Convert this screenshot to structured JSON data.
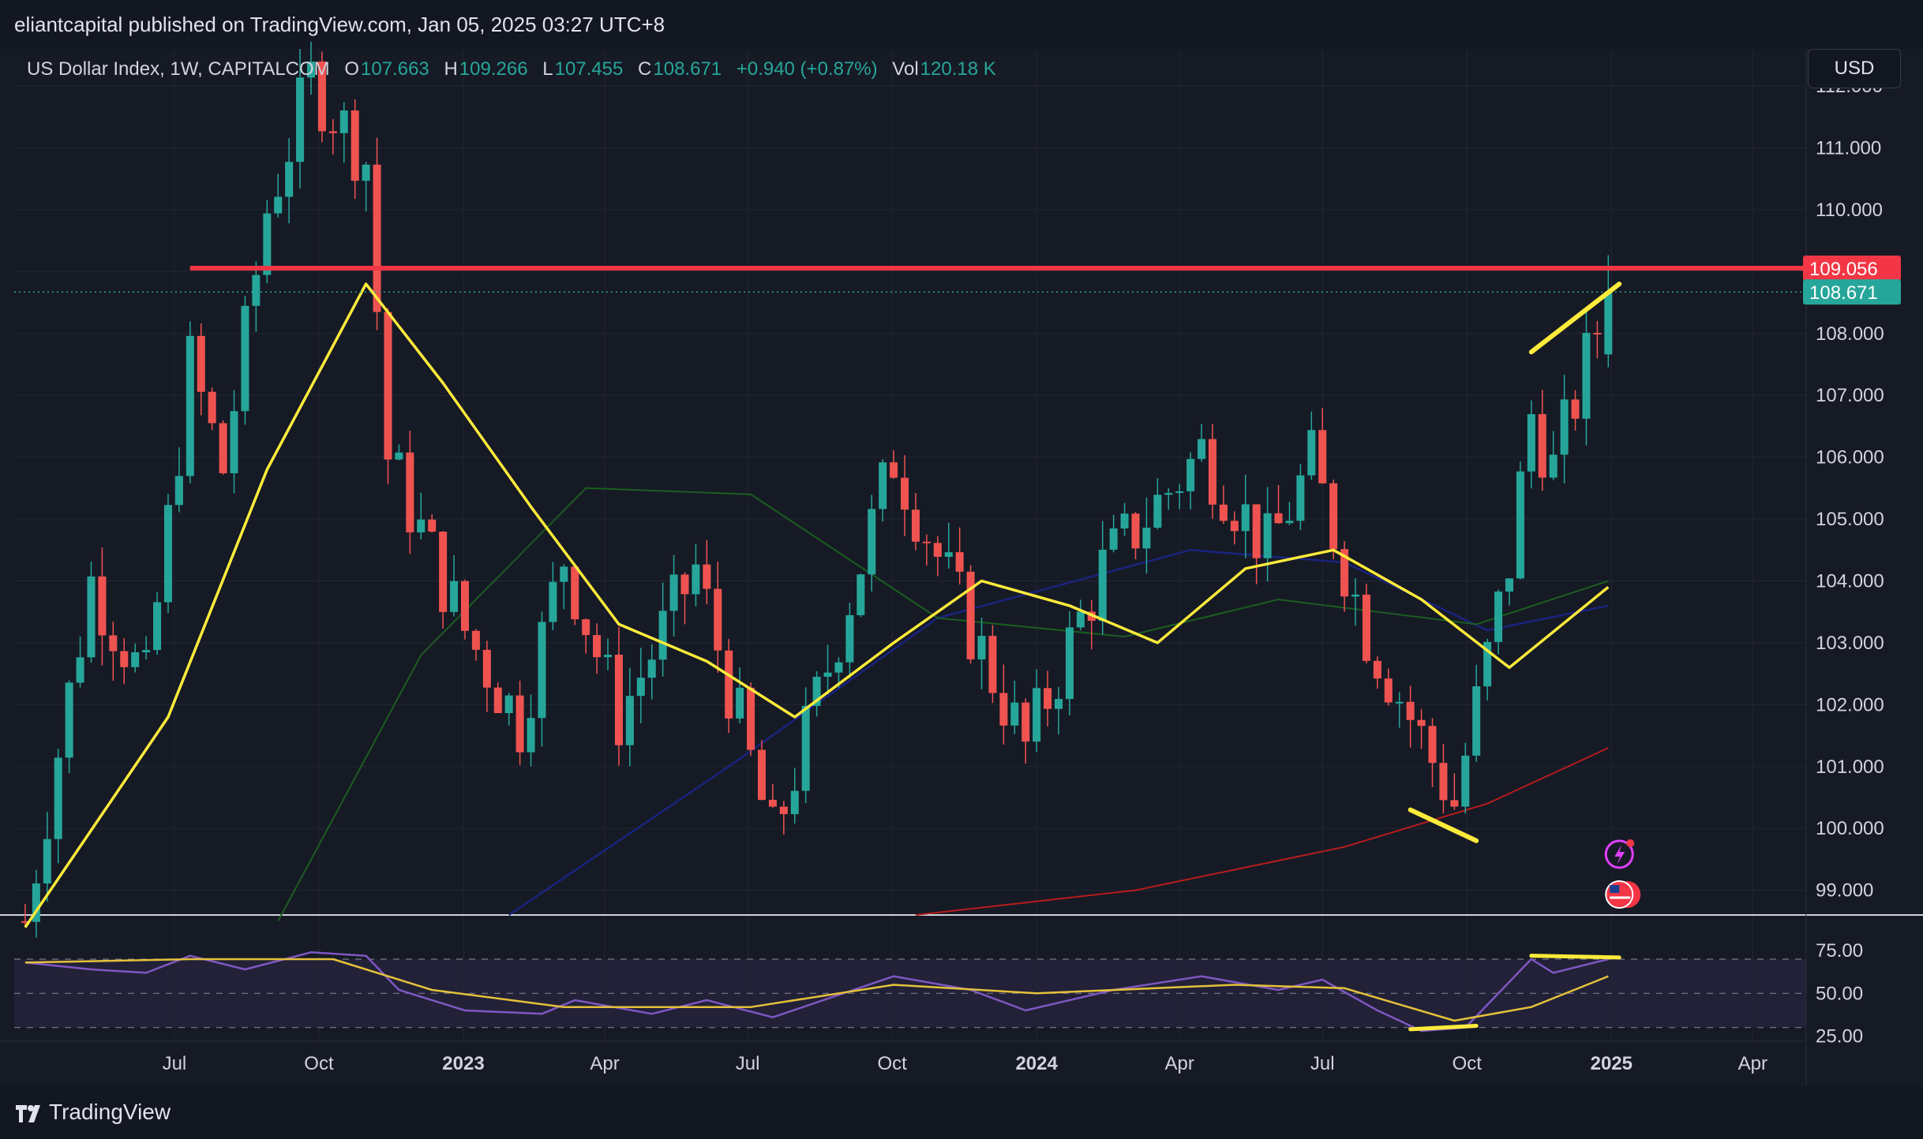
{
  "header": {
    "published": "eliantcapital published on TradingView.com, Jan 05, 2025 03:27 UTC+8",
    "symbol": "US Dollar Index, 1W, CAPITALCOM",
    "open_label": "O",
    "open": "107.663",
    "high_label": "H",
    "high": "109.266",
    "low_label": "L",
    "low": "107.455",
    "close_label": "C",
    "close": "108.671",
    "change": "+0.940 (+0.87%)",
    "vol_label": "Vol",
    "vol": "120.18 K",
    "currency": "USD"
  },
  "footer": {
    "brand": "TradingView"
  },
  "colors": {
    "up": "#26a69a",
    "down": "#ef5350",
    "resistance": "#f23645",
    "ma_yellow": "#ffeb3b",
    "rsi": "#7e57c2",
    "bg": "#161a25"
  },
  "icons": [
    "flash-event-icon",
    "us-flag-event-icon"
  ],
  "chart_data": {
    "type": "candlestick",
    "title": "US Dollar Index, 1W, CAPITALCOM",
    "interval": "1W",
    "y_ticks": [
      "112.000",
      "111.000",
      "110.000",
      "109.000",
      "108.000",
      "107.000",
      "106.000",
      "105.000",
      "104.000",
      "103.000",
      "102.000",
      "101.000",
      "100.000",
      "99.000"
    ],
    "ylim": [
      98.6,
      112.6
    ],
    "x_ticks": [
      {
        "label": "Jul",
        "date": "2022-07-01"
      },
      {
        "label": "Oct",
        "date": "2022-10-01"
      },
      {
        "label": "2023",
        "date": "2023-01-01",
        "bold": true
      },
      {
        "label": "Apr",
        "date": "2023-04-01"
      },
      {
        "label": "Jul",
        "date": "2023-07-01"
      },
      {
        "label": "Oct",
        "date": "2023-10-01"
      },
      {
        "label": "2024",
        "date": "2024-01-01",
        "bold": true
      },
      {
        "label": "Apr",
        "date": "2024-04-01"
      },
      {
        "label": "Jul",
        "date": "2024-07-01"
      },
      {
        "label": "Oct",
        "date": "2024-10-01"
      },
      {
        "label": "2025",
        "date": "2025-01-01",
        "bold": true
      },
      {
        "label": "Apr",
        "date": "2025-04-01"
      }
    ],
    "price_labels": [
      {
        "value": 109.056,
        "text": "109.056",
        "color": "#f23645"
      },
      {
        "value": 108.671,
        "text": "108.671",
        "color": "#26a69a"
      }
    ],
    "resistance": {
      "value": 109.056,
      "from": "2022-07-11"
    },
    "candles_keypoints": [
      {
        "date": "2022-03-28",
        "close": 98.5
      },
      {
        "date": "2022-05-09",
        "close": 104.0
      },
      {
        "date": "2022-06-13",
        "close": 102.3
      },
      {
        "date": "2022-07-11",
        "close": 107.5
      },
      {
        "date": "2022-08-01",
        "close": 105.8
      },
      {
        "date": "2022-08-29",
        "close": 110.0
      },
      {
        "date": "2022-09-26",
        "close": 112.1
      },
      {
        "date": "2022-10-31",
        "close": 110.8
      },
      {
        "date": "2022-11-14",
        "close": 106.0
      },
      {
        "date": "2023-01-02",
        "close": 103.2
      },
      {
        "date": "2023-02-06",
        "close": 101.7
      },
      {
        "date": "2023-03-06",
        "close": 104.4
      },
      {
        "date": "2023-04-10",
        "close": 101.8
      },
      {
        "date": "2023-05-29",
        "close": 104.2
      },
      {
        "date": "2023-07-17",
        "close": 99.8
      },
      {
        "date": "2023-10-02",
        "close": 106.0
      },
      {
        "date": "2023-11-06",
        "close": 104.0
      },
      {
        "date": "2023-12-25",
        "close": 101.3
      },
      {
        "date": "2024-02-12",
        "close": 104.2
      },
      {
        "date": "2024-04-15",
        "close": 106.1
      },
      {
        "date": "2024-05-27",
        "close": 104.5
      },
      {
        "date": "2024-06-24",
        "close": 105.9
      },
      {
        "date": "2024-07-29",
        "close": 103.2
      },
      {
        "date": "2024-09-23",
        "close": 100.4
      },
      {
        "date": "2024-10-28",
        "close": 104.3
      },
      {
        "date": "2024-11-11",
        "close": 106.7
      },
      {
        "date": "2024-11-25",
        "close": 105.8
      },
      {
        "date": "2024-12-30",
        "close": 108.671
      }
    ],
    "ma_yellow": [
      {
        "date": "2022-03-28",
        "value": 98.4
      },
      {
        "date": "2022-06-27",
        "value": 101.8
      },
      {
        "date": "2022-08-29",
        "value": 105.8
      },
      {
        "date": "2022-10-31",
        "value": 108.8
      },
      {
        "date": "2022-12-19",
        "value": 107.2
      },
      {
        "date": "2023-02-13",
        "value": 105.2
      },
      {
        "date": "2023-04-10",
        "value": 103.3
      },
      {
        "date": "2023-06-05",
        "value": 102.7
      },
      {
        "date": "2023-07-31",
        "value": 101.8
      },
      {
        "date": "2023-10-02",
        "value": 103.0
      },
      {
        "date": "2023-11-27",
        "value": 104.0
      },
      {
        "date": "2024-01-22",
        "value": 103.6
      },
      {
        "date": "2024-03-18",
        "value": 103.0
      },
      {
        "date": "2024-05-13",
        "value": 104.2
      },
      {
        "date": "2024-07-08",
        "value": 104.5
      },
      {
        "date": "2024-09-02",
        "value": 103.7
      },
      {
        "date": "2024-10-28",
        "value": 102.6
      },
      {
        "date": "2024-12-30",
        "value": 103.9
      }
    ],
    "ma_green": [
      {
        "date": "2022-09-05",
        "value": 98.5
      },
      {
        "date": "2022-12-05",
        "value": 102.8
      },
      {
        "date": "2023-03-20",
        "value": 105.5
      },
      {
        "date": "2023-07-03",
        "value": 105.4
      },
      {
        "date": "2023-10-30",
        "value": 103.4
      },
      {
        "date": "2024-02-26",
        "value": 103.1
      },
      {
        "date": "2024-06-03",
        "value": 103.7
      },
      {
        "date": "2024-10-07",
        "value": 103.3
      },
      {
        "date": "2024-12-30",
        "value": 104.0
      }
    ],
    "ma_blue": [
      {
        "date": "2023-01-30",
        "value": 98.6
      },
      {
        "date": "2023-06-19",
        "value": 101.0
      },
      {
        "date": "2023-10-30",
        "value": 103.4
      },
      {
        "date": "2024-04-08",
        "value": 104.5
      },
      {
        "date": "2024-07-15",
        "value": 104.3
      },
      {
        "date": "2024-10-14",
        "value": 103.2
      },
      {
        "date": "2024-12-30",
        "value": 103.6
      }
    ],
    "ma_red": [
      {
        "date": "2023-10-16",
        "value": 98.6
      },
      {
        "date": "2024-03-04",
        "value": 99.0
      },
      {
        "date": "2024-07-15",
        "value": 99.7
      },
      {
        "date": "2024-10-14",
        "value": 100.4
      },
      {
        "date": "2024-12-30",
        "value": 101.3
      }
    ],
    "trendlines": [
      {
        "from": {
          "date": "2024-11-11",
          "value": 107.7
        },
        "to": {
          "date": "2025-01-06",
          "value": 108.8
        }
      },
      {
        "from": {
          "date": "2024-08-26",
          "value": 100.3
        },
        "to": {
          "date": "2024-10-07",
          "value": 99.8
        }
      }
    ],
    "rsi": {
      "y_ticks": [
        "75.00",
        "50.00",
        "25.00"
      ],
      "levels": [
        70,
        50,
        30
      ],
      "ylim": [
        22,
        82
      ],
      "series": [
        {
          "date": "2022-03-28",
          "value": 68
        },
        {
          "date": "2022-05-09",
          "value": 64
        },
        {
          "date": "2022-06-13",
          "value": 62
        },
        {
          "date": "2022-07-11",
          "value": 72
        },
        {
          "date": "2022-08-15",
          "value": 64
        },
        {
          "date": "2022-09-26",
          "value": 74
        },
        {
          "date": "2022-10-31",
          "value": 72
        },
        {
          "date": "2022-11-21",
          "value": 52
        },
        {
          "date": "2023-01-02",
          "value": 40
        },
        {
          "date": "2023-02-20",
          "value": 38
        },
        {
          "date": "2023-03-13",
          "value": 46
        },
        {
          "date": "2023-05-01",
          "value": 38
        },
        {
          "date": "2023-06-05",
          "value": 46
        },
        {
          "date": "2023-07-17",
          "value": 36
        },
        {
          "date": "2023-10-02",
          "value": 60
        },
        {
          "date": "2023-11-20",
          "value": 52
        },
        {
          "date": "2023-12-25",
          "value": 40
        },
        {
          "date": "2024-02-19",
          "value": 52
        },
        {
          "date": "2024-04-15",
          "value": 60
        },
        {
          "date": "2024-06-03",
          "value": 52
        },
        {
          "date": "2024-07-01",
          "value": 58
        },
        {
          "date": "2024-08-05",
          "value": 40
        },
        {
          "date": "2024-09-02",
          "value": 28
        },
        {
          "date": "2024-09-30",
          "value": 30
        },
        {
          "date": "2024-11-11",
          "value": 70
        },
        {
          "date": "2024-11-25",
          "value": 62
        },
        {
          "date": "2024-12-30",
          "value": 70
        }
      ],
      "signal": [
        {
          "date": "2022-03-28",
          "value": 68
        },
        {
          "date": "2022-07-11",
          "value": 70
        },
        {
          "date": "2022-10-10",
          "value": 70
        },
        {
          "date": "2022-12-12",
          "value": 52
        },
        {
          "date": "2023-03-06",
          "value": 42
        },
        {
          "date": "2023-07-03",
          "value": 42
        },
        {
          "date": "2023-10-02",
          "value": 55
        },
        {
          "date": "2024-01-01",
          "value": 50
        },
        {
          "date": "2024-05-06",
          "value": 55
        },
        {
          "date": "2024-07-15",
          "value": 53
        },
        {
          "date": "2024-09-23",
          "value": 34
        },
        {
          "date": "2024-11-11",
          "value": 42
        },
        {
          "date": "2024-12-30",
          "value": 60
        }
      ],
      "trendlines": [
        {
          "from": {
            "date": "2024-11-11",
            "value": 72
          },
          "to": {
            "date": "2025-01-06",
            "value": 71
          }
        },
        {
          "from": {
            "date": "2024-08-26",
            "value": 29
          },
          "to": {
            "date": "2024-10-07",
            "value": 31
          }
        }
      ]
    }
  }
}
